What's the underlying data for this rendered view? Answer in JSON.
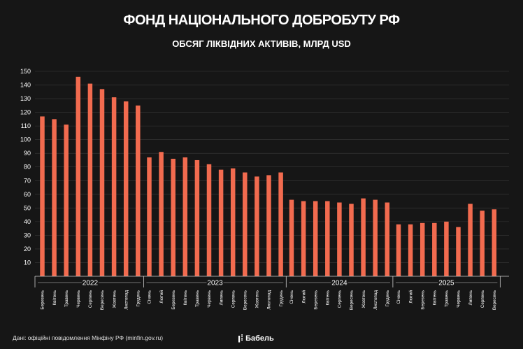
{
  "header": {
    "title": "ФОНД НАЦІОНАЛЬНОГО ДОБРОБУТУ РФ",
    "subtitle": "ОБСЯГ ЛІКВІДНИХ АКТИВІВ, МЛРД USD"
  },
  "footer": {
    "source": "Дані: офіційні повідомлення Мінфіну РФ (minfin.gov.ru)",
    "brand": "Бабель",
    "brand_icon": "babel-logo-icon"
  },
  "colors": {
    "bar": "#f26b4f",
    "background": "#161616",
    "grid": "#3a3a3a"
  },
  "chart_data": {
    "type": "bar",
    "title": "ФОНД НАЦІОНАЛЬНОГО ДОБРОБУТУ РФ",
    "subtitle": "ОБСЯГ ЛІКВІДНИХ АКТИВІВ, МЛРД USD",
    "ylim": [
      0,
      150
    ],
    "yticks": [
      10,
      20,
      30,
      40,
      50,
      60,
      70,
      80,
      90,
      100,
      110,
      120,
      130,
      140,
      150
    ],
    "grid": true,
    "groups": [
      {
        "year": "2022",
        "categories": [
          "Березень",
          "Квітень",
          "Травень",
          "Червень",
          "Серпень",
          "Вересень",
          "Жовтень",
          "Листопад",
          "Грудень"
        ],
        "values": [
          117,
          115,
          111,
          146,
          141,
          137,
          131,
          128,
          125
        ]
      },
      {
        "year": "2023",
        "categories": [
          "Січень",
          "Лютий",
          "Березень",
          "Квітень",
          "Травень",
          "Червень",
          "Липень",
          "Серпень",
          "Вересень",
          "Жовтень",
          "Листопад",
          "Грудень"
        ],
        "values": [
          87,
          91,
          86,
          87,
          85,
          82,
          78,
          79,
          76,
          73,
          74,
          76
        ]
      },
      {
        "year": "2024",
        "categories": [
          "Січень",
          "Лютий",
          "Березень",
          "Квітень",
          "Серпень",
          "Вересень",
          "Жовтень",
          "Листопад",
          "Грудень"
        ],
        "values": [
          56,
          55,
          55,
          55,
          54,
          53,
          57,
          56,
          54
        ]
      },
      {
        "year": "2025",
        "categories": [
          "Січень",
          "Лютий",
          "Березень",
          "Квітень",
          "Травень",
          "Червень",
          "Липень",
          "Серпень",
          "Вересень"
        ],
        "values": [
          38,
          38,
          39,
          39,
          40,
          36,
          53,
          48,
          49
        ]
      }
    ]
  }
}
